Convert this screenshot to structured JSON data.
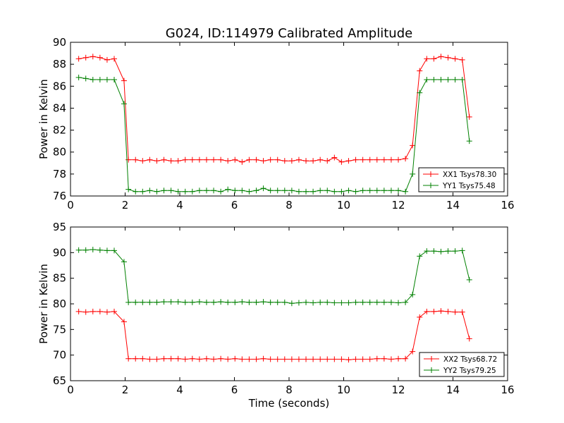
{
  "chart_data": [
    {
      "type": "line",
      "title": "G024, ID:114979 Calibrated Amplitude",
      "xlabel": "",
      "ylabel": "Power in Kelvin",
      "xlim": [
        0,
        16
      ],
      "ylim": [
        76,
        90
      ],
      "x_ticks": [
        0,
        2,
        4,
        6,
        8,
        10,
        12,
        14,
        16
      ],
      "y_ticks": [
        76,
        78,
        80,
        82,
        84,
        86,
        88,
        90
      ],
      "legend_position": "lower-right",
      "x": [
        0.3,
        0.56,
        0.82,
        1.08,
        1.34,
        1.6,
        1.96,
        2.12,
        2.38,
        2.64,
        2.9,
        3.16,
        3.42,
        3.68,
        3.94,
        4.2,
        4.46,
        4.72,
        4.98,
        5.24,
        5.5,
        5.76,
        6.02,
        6.28,
        6.54,
        6.8,
        7.06,
        7.32,
        7.58,
        7.84,
        8.1,
        8.36,
        8.62,
        8.88,
        9.14,
        9.4,
        9.66,
        9.92,
        10.18,
        10.44,
        10.7,
        10.96,
        11.22,
        11.48,
        11.74,
        12.0,
        12.26,
        12.52,
        12.78,
        13.04,
        13.3,
        13.56,
        13.82,
        14.08,
        14.34,
        14.6
      ],
      "series": [
        {
          "name": "XX1 Tsys78.30",
          "color": "#ff0000",
          "values": [
            88.5,
            88.6,
            88.7,
            88.6,
            88.4,
            88.5,
            86.5,
            79.3,
            79.3,
            79.2,
            79.3,
            79.2,
            79.3,
            79.2,
            79.2,
            79.3,
            79.3,
            79.3,
            79.3,
            79.3,
            79.3,
            79.2,
            79.3,
            79.1,
            79.3,
            79.3,
            79.2,
            79.3,
            79.3,
            79.2,
            79.2,
            79.3,
            79.2,
            79.2,
            79.3,
            79.2,
            79.5,
            79.1,
            79.2,
            79.3,
            79.3,
            79.3,
            79.3,
            79.3,
            79.3,
            79.3,
            79.4,
            80.6,
            87.4,
            88.5,
            88.5,
            88.7,
            88.6,
            88.5,
            88.4,
            83.2
          ]
        },
        {
          "name": "YY1 Tsys75.48",
          "color": "#008000",
          "values": [
            86.8,
            86.7,
            86.6,
            86.6,
            86.6,
            86.6,
            84.4,
            76.6,
            76.4,
            76.4,
            76.5,
            76.4,
            76.5,
            76.5,
            76.4,
            76.4,
            76.4,
            76.5,
            76.5,
            76.5,
            76.4,
            76.6,
            76.5,
            76.5,
            76.4,
            76.5,
            76.7,
            76.5,
            76.5,
            76.5,
            76.5,
            76.4,
            76.4,
            76.4,
            76.5,
            76.5,
            76.4,
            76.4,
            76.5,
            76.4,
            76.5,
            76.5,
            76.5,
            76.5,
            76.5,
            76.5,
            76.4,
            78.0,
            85.4,
            86.6,
            86.6,
            86.6,
            86.6,
            86.6,
            86.6,
            81.0
          ]
        }
      ]
    },
    {
      "type": "line",
      "title": "",
      "xlabel": "Time (seconds)",
      "ylabel": "Power in Kelvin",
      "xlim": [
        0,
        16
      ],
      "ylim": [
        65,
        95
      ],
      "x_ticks": [
        0,
        2,
        4,
        6,
        8,
        10,
        12,
        14,
        16
      ],
      "y_ticks": [
        65,
        70,
        75,
        80,
        85,
        90,
        95
      ],
      "legend_position": "lower-right",
      "x": [
        0.3,
        0.56,
        0.82,
        1.08,
        1.34,
        1.6,
        1.96,
        2.12,
        2.38,
        2.64,
        2.9,
        3.16,
        3.42,
        3.68,
        3.94,
        4.2,
        4.46,
        4.72,
        4.98,
        5.24,
        5.5,
        5.76,
        6.02,
        6.28,
        6.54,
        6.8,
        7.06,
        7.32,
        7.58,
        7.84,
        8.1,
        8.36,
        8.62,
        8.88,
        9.14,
        9.4,
        9.66,
        9.92,
        10.18,
        10.44,
        10.7,
        10.96,
        11.22,
        11.48,
        11.74,
        12.0,
        12.26,
        12.52,
        12.78,
        13.04,
        13.3,
        13.56,
        13.82,
        14.08,
        14.34,
        14.6
      ],
      "series": [
        {
          "name": "XX2 Tsys68.72",
          "color": "#ff0000",
          "values": [
            78.5,
            78.4,
            78.5,
            78.5,
            78.4,
            78.5,
            76.5,
            69.3,
            69.3,
            69.3,
            69.2,
            69.2,
            69.3,
            69.3,
            69.3,
            69.2,
            69.3,
            69.2,
            69.3,
            69.2,
            69.3,
            69.2,
            69.3,
            69.2,
            69.2,
            69.2,
            69.3,
            69.2,
            69.2,
            69.2,
            69.2,
            69.2,
            69.2,
            69.2,
            69.2,
            69.2,
            69.2,
            69.2,
            69.1,
            69.2,
            69.2,
            69.2,
            69.3,
            69.3,
            69.2,
            69.3,
            69.3,
            70.7,
            77.4,
            78.5,
            78.5,
            78.6,
            78.5,
            78.4,
            78.4,
            73.2
          ]
        },
        {
          "name": "YY2 Tsys79.25",
          "color": "#008000",
          "values": [
            90.5,
            90.5,
            90.6,
            90.5,
            90.4,
            90.4,
            88.2,
            80.3,
            80.3,
            80.3,
            80.3,
            80.3,
            80.4,
            80.4,
            80.4,
            80.3,
            80.3,
            80.4,
            80.3,
            80.3,
            80.4,
            80.3,
            80.3,
            80.4,
            80.3,
            80.3,
            80.4,
            80.3,
            80.3,
            80.3,
            80.1,
            80.2,
            80.3,
            80.2,
            80.3,
            80.3,
            80.2,
            80.2,
            80.2,
            80.3,
            80.3,
            80.3,
            80.3,
            80.3,
            80.3,
            80.2,
            80.3,
            81.8,
            89.3,
            90.3,
            90.3,
            90.2,
            90.3,
            90.3,
            90.4,
            84.7
          ]
        }
      ]
    }
  ]
}
